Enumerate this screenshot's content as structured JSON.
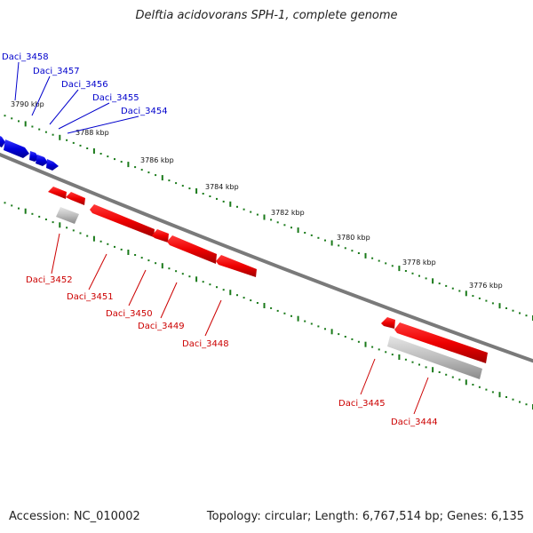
{
  "title": "Delftia acidovorans SPH-1, complete genome",
  "footer": {
    "accession": "Accession: NC_010002",
    "summary": "Topology: circular; Length: 6,767,514 bp; Genes: 6,135"
  },
  "colors": {
    "forward": "#0000cc",
    "reverse": "#cc0000",
    "pseudo": "#aaaaaa",
    "backbone": "#777777",
    "ticks": "#1a7a1a"
  },
  "ticks": [
    "3790 kbp",
    "3788 kbp",
    "3786 kbp",
    "3784 kbp",
    "3782 kbp",
    "3780 kbp",
    "3778 kbp",
    "3776 kbp"
  ],
  "forward_genes": [
    "Daci_3458",
    "Daci_3457",
    "Daci_3456",
    "Daci_3455",
    "Daci_3454"
  ],
  "reverse_genes": [
    "Daci_3452",
    "Daci_3451",
    "Daci_3450",
    "Daci_3449",
    "Daci_3448",
    "Daci_3445",
    "Daci_3444"
  ]
}
